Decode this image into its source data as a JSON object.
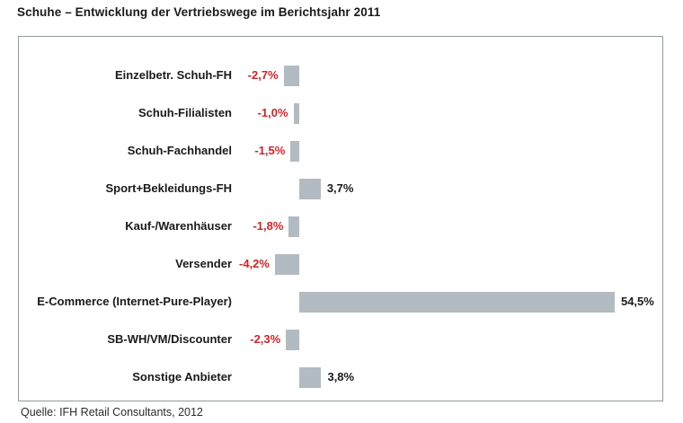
{
  "title": "Schuhe – Entwicklung der Vertriebswege im Berichtsjahr 2011",
  "source": "Quelle: IFH Retail Consultants, 2012",
  "colors": {
    "bar_fill": "#b2bbc2",
    "negative_label": "#d2232a",
    "positive_label": "#1a1a1a",
    "panel_border": "#8f9a9a",
    "title_text": "#1a1a1a"
  },
  "chart_data": {
    "type": "bar",
    "orientation": "horizontal",
    "title": "Schuhe – Entwicklung der Vertriebswege im Berichtsjahr 2011",
    "xlabel": "",
    "ylabel": "",
    "unit": "%",
    "baseline": 0,
    "xlim": [
      -50,
      63
    ],
    "grid": false,
    "legend": false,
    "categories": [
      "Einzelbetr. Schuh-FH",
      "Schuh-Filialisten",
      "Schuh-Fachhandel",
      "Sport+Bekleidungs-FH",
      "Kauf-/Warenhäuser",
      "Versender",
      "E-Commerce (Internet-Pure-Player)",
      "SB-WH/VM/Discounter",
      "Sonstige Anbieter"
    ],
    "values": [
      -2.7,
      -1.0,
      -1.5,
      3.7,
      -1.8,
      -4.2,
      54.5,
      -2.3,
      3.8
    ],
    "value_labels": [
      "-2,7%",
      "-1,0%",
      "-1,5%",
      "3,7%",
      "-1,8%",
      "-4,2%",
      "54,5%",
      "-2,3%",
      "3,8%"
    ]
  }
}
